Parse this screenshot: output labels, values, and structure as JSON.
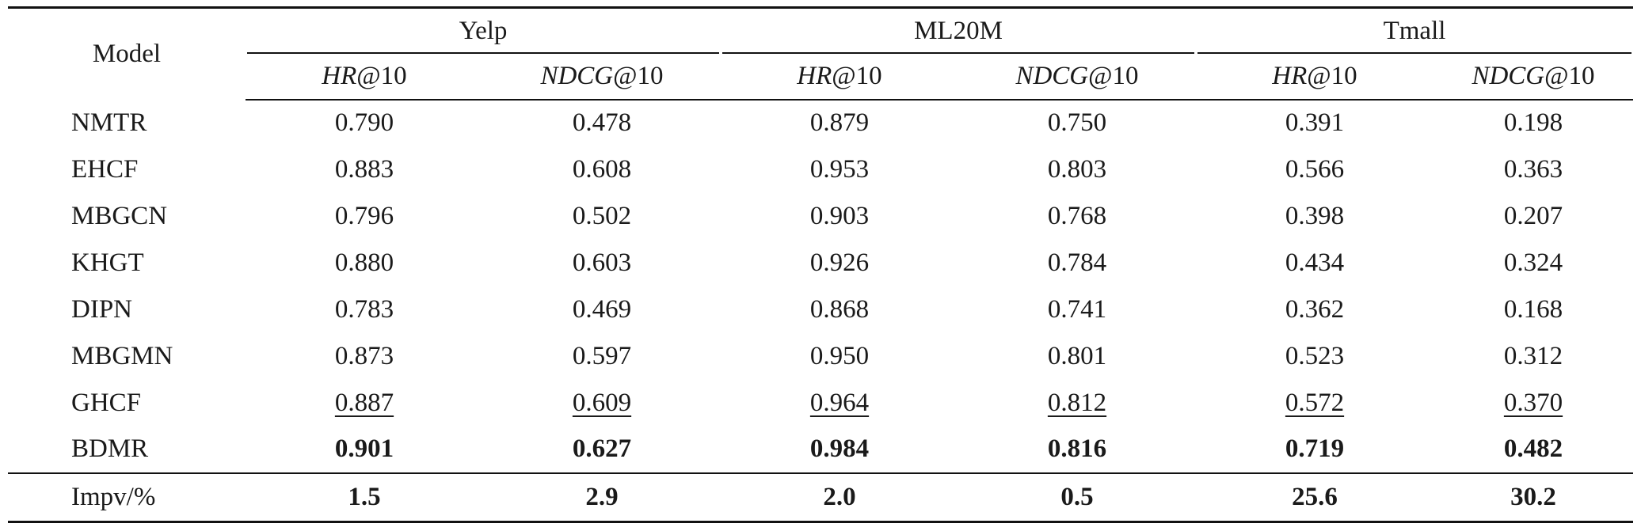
{
  "table": {
    "model_header": "Model",
    "datasets": [
      "Yelp",
      "ML20M",
      "Tmall"
    ],
    "metric_headers": [
      {
        "name": "HR",
        "suffix": "@10"
      },
      {
        "name": "NDCG",
        "suffix": "@10"
      },
      {
        "name": "HR",
        "suffix": "@10"
      },
      {
        "name": "NDCG",
        "suffix": "@10"
      },
      {
        "name": "HR",
        "suffix": "@10"
      },
      {
        "name": "NDCG",
        "suffix": "@10"
      }
    ],
    "rows": [
      {
        "model": "NMTR",
        "values": [
          "0.790",
          "0.478",
          "0.879",
          "0.750",
          "0.391",
          "0.198"
        ],
        "style": "normal"
      },
      {
        "model": "EHCF",
        "values": [
          "0.883",
          "0.608",
          "0.953",
          "0.803",
          "0.566",
          "0.363"
        ],
        "style": "normal"
      },
      {
        "model": "MBGCN",
        "values": [
          "0.796",
          "0.502",
          "0.903",
          "0.768",
          "0.398",
          "0.207"
        ],
        "style": "normal"
      },
      {
        "model": "KHGT",
        "values": [
          "0.880",
          "0.603",
          "0.926",
          "0.784",
          "0.434",
          "0.324"
        ],
        "style": "normal"
      },
      {
        "model": "DIPN",
        "values": [
          "0.783",
          "0.469",
          "0.868",
          "0.741",
          "0.362",
          "0.168"
        ],
        "style": "normal"
      },
      {
        "model": "MBGMN",
        "values": [
          "0.873",
          "0.597",
          "0.950",
          "0.801",
          "0.523",
          "0.312"
        ],
        "style": "normal"
      },
      {
        "model": "GHCF",
        "values": [
          "0.887",
          "0.609",
          "0.964",
          "0.812",
          "0.572",
          "0.370"
        ],
        "style": "underline"
      },
      {
        "model": "BDMR",
        "values": [
          "0.901",
          "0.627",
          "0.984",
          "0.816",
          "0.719",
          "0.482"
        ],
        "style": "bold"
      }
    ],
    "impv": {
      "label": "Impv/%",
      "values": [
        "1.5",
        "2.9",
        "2.0",
        "0.5",
        "25.6",
        "30.2"
      ]
    }
  }
}
